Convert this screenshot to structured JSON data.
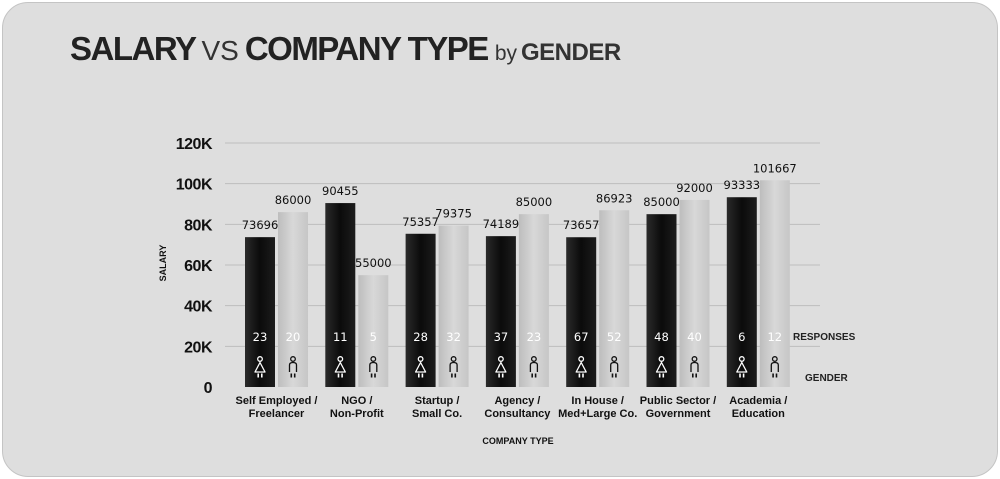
{
  "title": {
    "part1": "SALARY",
    "part2": "VS",
    "part3": "COMPANY TYPE",
    "part4": "by",
    "part5": "GENDER"
  },
  "chart_data": {
    "type": "bar",
    "categories": [
      [
        "Self Employed /",
        "Freelancer"
      ],
      [
        "NGO /",
        "Non-Profit"
      ],
      [
        "Startup /",
        "Small Co."
      ],
      [
        "Agency /",
        "Consultancy"
      ],
      [
        "In House /",
        "Med+Large Co."
      ],
      [
        "Public Sector /",
        "Government"
      ],
      [
        "Academia /",
        "Education"
      ]
    ],
    "series": [
      {
        "gender_icon": "female-icon",
        "color": "#111111",
        "values": [
          73696,
          90455,
          75357,
          74189,
          73657,
          85000,
          93333
        ],
        "responses": [
          23,
          11,
          28,
          37,
          67,
          48,
          6
        ]
      },
      {
        "gender_icon": "male-icon",
        "color": "#c8c8c8",
        "values": [
          86000,
          55000,
          79375,
          85000,
          86923,
          92000,
          101667
        ],
        "responses": [
          20,
          5,
          32,
          23,
          52,
          40,
          12
        ]
      }
    ],
    "xlabel": "COMPANY TYPE",
    "ylabel": "SALARY",
    "ylim": [
      0,
      120000
    ],
    "yticks": [
      {
        "value": 0,
        "label": "0"
      },
      {
        "value": 20000,
        "label": "20K"
      },
      {
        "value": 40000,
        "label": "40K"
      },
      {
        "value": 60000,
        "label": "60K"
      },
      {
        "value": 80000,
        "label": "80K"
      },
      {
        "value": 100000,
        "label": "100K"
      },
      {
        "value": 120000,
        "label": "120K"
      }
    ],
    "responses_label": "RESPONSES",
    "gender_label": "GENDER",
    "grid": true,
    "legend": "none"
  }
}
